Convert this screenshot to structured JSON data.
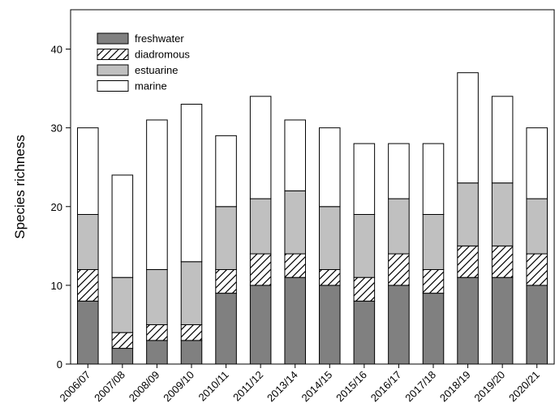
{
  "chart_data": {
    "type": "bar",
    "stacked": true,
    "title": "",
    "xlabel": "",
    "ylabel": "Species richness",
    "ylim": [
      0,
      40
    ],
    "yticks": [
      0,
      10,
      20,
      30,
      40
    ],
    "grid": false,
    "legend_position": "top-left",
    "categories": [
      "2006/07",
      "2007/08",
      "2008/09",
      "2009/10",
      "2010/11",
      "2011/12",
      "2013/14",
      "2014/15",
      "2015/16",
      "2016/17",
      "2017/18",
      "2018/19",
      "2019/20",
      "2020/21"
    ],
    "series": [
      {
        "name": "freshwater",
        "fill": "#808080",
        "pattern": "solid",
        "values": [
          8,
          2,
          3,
          3,
          9,
          10,
          11,
          10,
          8,
          10,
          9,
          11,
          11,
          10
        ]
      },
      {
        "name": "diadromous",
        "fill": "#ffffff",
        "pattern": "hatch",
        "values": [
          4,
          2,
          2,
          2,
          3,
          4,
          3,
          2,
          3,
          4,
          3,
          4,
          4,
          4
        ]
      },
      {
        "name": "estuarine",
        "fill": "#c0c0c0",
        "pattern": "solid",
        "values": [
          7,
          7,
          7,
          8,
          8,
          7,
          8,
          8,
          8,
          7,
          7,
          8,
          8,
          7
        ]
      },
      {
        "name": "marine",
        "fill": "#ffffff",
        "pattern": "solid",
        "values": [
          11,
          13,
          19,
          20,
          9,
          13,
          9,
          10,
          9,
          7,
          9,
          14,
          11,
          9
        ]
      }
    ]
  }
}
